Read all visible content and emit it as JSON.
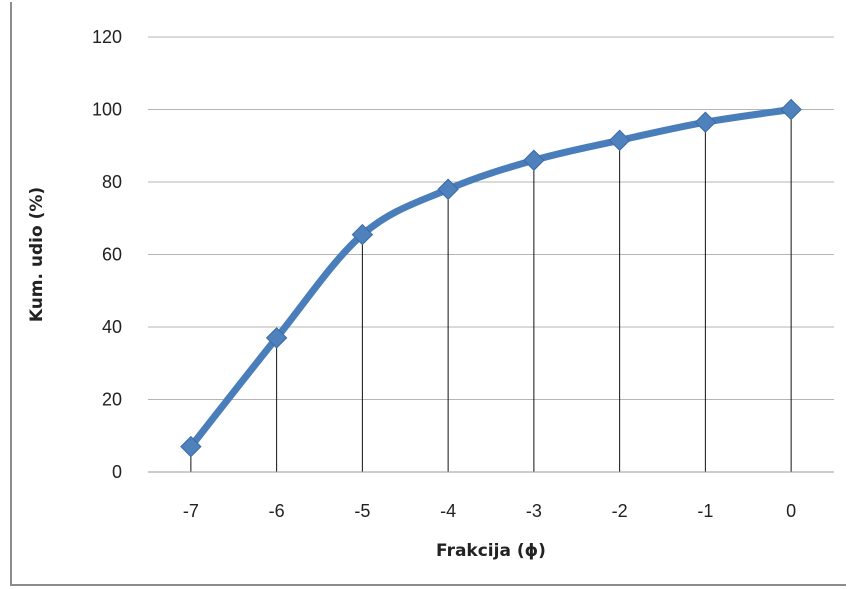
{
  "chart_data": {
    "type": "line",
    "title": "",
    "xlabel": "Frakcija (ϕ)",
    "ylabel": "Kum. udio (%)",
    "categories": [
      "-7",
      "-6",
      "-5",
      "-4",
      "-3",
      "-2",
      "-1",
      "0"
    ],
    "series": [
      {
        "values": [
          7,
          37,
          65.5,
          78,
          86,
          91.5,
          96.5,
          100
        ]
      }
    ],
    "ylim": [
      0,
      120
    ],
    "yticks": [
      "0",
      "20",
      "40",
      "60",
      "80",
      "100",
      "120"
    ],
    "grid": true,
    "drop_lines": true,
    "marker": "diamond",
    "colors": {
      "series": "#4A7EBB",
      "marker": "#4F81BD",
      "grid": "#B5B5B5"
    }
  }
}
